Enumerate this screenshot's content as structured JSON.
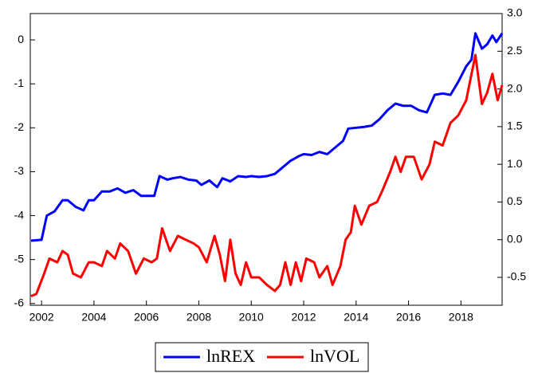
{
  "chart_data": {
    "type": "line",
    "xlim": [
      2001.57,
      2019.57
    ],
    "xticks": [
      2002,
      2004,
      2006,
      2008,
      2010,
      2012,
      2014,
      2016,
      2018
    ],
    "ylim": [
      -6.04,
      0.6
    ],
    "yticks": [
      -6,
      -5,
      -4,
      -3,
      -2,
      -1,
      0
    ],
    "y2lim": [
      -0.87,
      3.0
    ],
    "y2ticks": [
      -0.5,
      {
        "value": 0,
        "label": "0.0"
      },
      0.5,
      {
        "value": 1,
        "label": "1.0"
      },
      1.5,
      {
        "value": 2,
        "label": "2.0"
      },
      2.5,
      {
        "value": 3,
        "label": "3.0"
      }
    ],
    "series": [
      {
        "name": "lnREX",
        "color": "#0000ff",
        "x": [
          2001.6,
          2002.0,
          2002.2,
          2002.5,
          2002.8,
          2003.0,
          2003.3,
          2003.6,
          2003.8,
          2004.0,
          2004.3,
          2004.6,
          2004.9,
          2005.2,
          2005.5,
          2005.8,
          2006.0,
          2006.3,
          2006.5,
          2006.8,
          2007.0,
          2007.3,
          2007.6,
          2007.9,
          2008.1,
          2008.4,
          2008.7,
          2008.9,
          2009.2,
          2009.5,
          2009.8,
          2010.0,
          2010.3,
          2010.6,
          2010.9,
          2011.2,
          2011.5,
          2011.8,
          2012.0,
          2012.3,
          2012.6,
          2012.9,
          2013.2,
          2013.5,
          2013.7,
          2014.0,
          2014.3,
          2014.6,
          2014.9,
          2015.2,
          2015.5,
          2015.8,
          2016.1,
          2016.4,
          2016.7,
          2017.0,
          2017.3,
          2017.6,
          2017.9,
          2018.2,
          2018.4,
          2018.55,
          2018.8,
          2019.0,
          2019.2,
          2019.35,
          2019.57
        ],
        "values": [
          -4.57,
          -4.55,
          -4.0,
          -3.9,
          -3.65,
          -3.65,
          -3.8,
          -3.88,
          -3.65,
          -3.65,
          -3.45,
          -3.45,
          -3.38,
          -3.48,
          -3.42,
          -3.55,
          -3.55,
          -3.55,
          -3.1,
          -3.18,
          -3.15,
          -3.12,
          -3.18,
          -3.2,
          -3.3,
          -3.2,
          -3.35,
          -3.15,
          -3.22,
          -3.1,
          -3.12,
          -3.1,
          -3.12,
          -3.1,
          -3.05,
          -2.9,
          -2.75,
          -2.65,
          -2.6,
          -2.62,
          -2.55,
          -2.6,
          -2.45,
          -2.3,
          -2.02,
          -2.0,
          -1.98,
          -1.95,
          -1.8,
          -1.6,
          -1.45,
          -1.5,
          -1.5,
          -1.6,
          -1.65,
          -1.25,
          -1.22,
          -1.25,
          -0.95,
          -0.6,
          -0.45,
          0.15,
          -0.2,
          -0.1,
          0.1,
          -0.05,
          0.15
        ]
      },
      {
        "name": "lnVOL",
        "color": "#ff0000",
        "axis": "y2",
        "x": [
          2001.6,
          2001.8,
          2002.1,
          2002.3,
          2002.6,
          2002.8,
          2003.0,
          2003.2,
          2003.5,
          2003.8,
          2004.0,
          2004.3,
          2004.5,
          2004.8,
          2005.0,
          2005.3,
          2005.6,
          2005.9,
          2006.2,
          2006.4,
          2006.6,
          2006.9,
          2007.2,
          2007.5,
          2007.8,
          2008.0,
          2008.3,
          2008.6,
          2008.8,
          2009.0,
          2009.2,
          2009.4,
          2009.6,
          2009.8,
          2010.0,
          2010.3,
          2010.6,
          2010.9,
          2011.1,
          2011.3,
          2011.5,
          2011.7,
          2011.9,
          2012.1,
          2012.4,
          2012.6,
          2012.9,
          2013.1,
          2013.4,
          2013.6,
          2013.8,
          2013.95,
          2014.2,
          2014.5,
          2014.8,
          2015.0,
          2015.3,
          2015.5,
          2015.7,
          2015.9,
          2016.2,
          2016.5,
          2016.8,
          2017.0,
          2017.3,
          2017.6,
          2017.9,
          2018.2,
          2018.55,
          2018.8,
          2019.0,
          2019.2,
          2019.4,
          2019.57
        ],
        "values": [
          -0.75,
          -0.72,
          -0.45,
          -0.25,
          -0.3,
          -0.15,
          -0.2,
          -0.45,
          -0.5,
          -0.3,
          -0.3,
          -0.35,
          -0.15,
          -0.25,
          -0.05,
          -0.15,
          -0.45,
          -0.25,
          -0.3,
          -0.25,
          0.15,
          -0.15,
          0.05,
          0.0,
          -0.05,
          -0.1,
          -0.3,
          0.05,
          -0.2,
          -0.55,
          0.0,
          -0.45,
          -0.6,
          -0.3,
          -0.5,
          -0.5,
          -0.6,
          -0.68,
          -0.6,
          -0.3,
          -0.6,
          -0.3,
          -0.55,
          -0.25,
          -0.3,
          -0.5,
          -0.35,
          -0.6,
          -0.35,
          0.0,
          0.1,
          0.45,
          0.2,
          0.45,
          0.5,
          0.65,
          0.9,
          1.1,
          0.9,
          1.1,
          1.1,
          0.8,
          1.0,
          1.3,
          1.25,
          1.55,
          1.65,
          1.85,
          2.45,
          1.8,
          1.95,
          2.2,
          1.85,
          2.05
        ]
      }
    ]
  }
}
